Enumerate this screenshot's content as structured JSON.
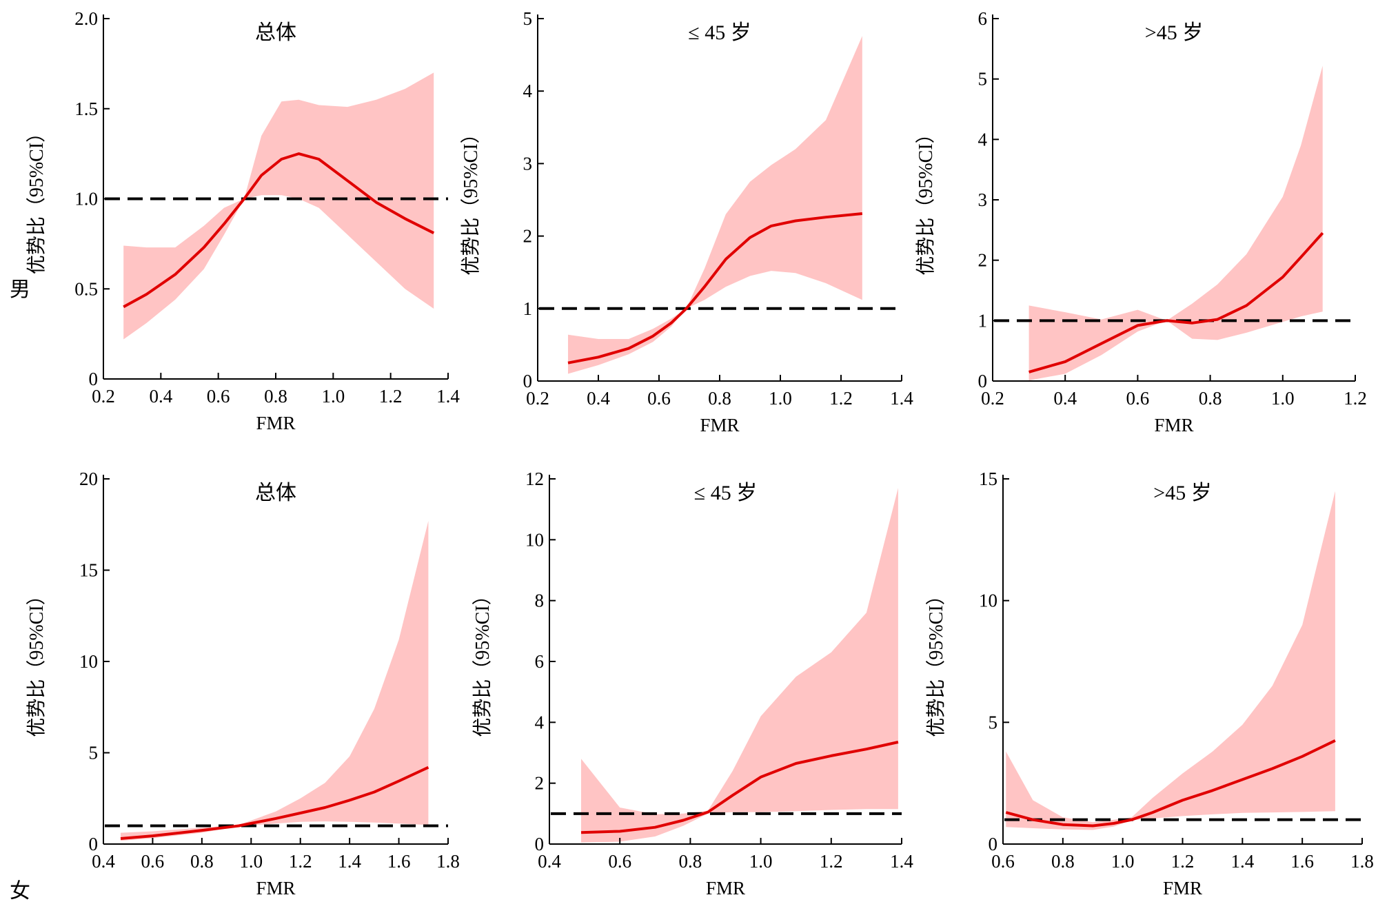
{
  "row_labels": {
    "male": "男",
    "female": "女"
  },
  "colors": {
    "curve": "#e00000",
    "band": "#ffc4c4",
    "reference": "#000000",
    "axis": "#000000"
  },
  "chart_data": [
    {
      "type": "line",
      "title": "总体",
      "xlabel": "FMR",
      "ylabel": "优势比（95%CI）",
      "xlim": [
        0.2,
        1.4
      ],
      "ylim": [
        0,
        2.0
      ],
      "xticks": [
        0.2,
        0.4,
        0.6,
        0.8,
        1.0,
        1.2,
        1.4
      ],
      "xtick_labels": [
        "0.2",
        "0.4",
        "0.6",
        "0.8",
        "1.0",
        "1.2",
        "1.4"
      ],
      "yticks": [
        0,
        0.5,
        1.0,
        1.5,
        2.0
      ],
      "ytick_labels": [
        "0",
        "0.5",
        "1.0",
        "1.5",
        "2.0"
      ],
      "reference_line": 1,
      "x": [
        0.27,
        0.35,
        0.45,
        0.55,
        0.62,
        0.69,
        0.75,
        0.82,
        0.88,
        0.95,
        1.05,
        1.15,
        1.25,
        1.35
      ],
      "y": [
        0.4,
        0.47,
        0.58,
        0.73,
        0.86,
        1.0,
        1.13,
        1.22,
        1.25,
        1.22,
        1.1,
        0.98,
        0.89,
        0.81
      ],
      "ci_lower": [
        0.22,
        0.31,
        0.44,
        0.61,
        0.8,
        1.0,
        1.02,
        1.02,
        1.0,
        0.95,
        0.8,
        0.65,
        0.5,
        0.39
      ],
      "ci_upper": [
        0.74,
        0.73,
        0.73,
        0.85,
        0.95,
        1.0,
        1.35,
        1.54,
        1.55,
        1.52,
        1.51,
        1.55,
        1.61,
        1.7
      ]
    },
    {
      "type": "line",
      "title": "≤ 45 岁",
      "xlabel": "FMR",
      "ylabel": "优势比（95%CI）",
      "xlim": [
        0.2,
        1.4
      ],
      "ylim": [
        0,
        5
      ],
      "xticks": [
        0.2,
        0.4,
        0.6,
        0.8,
        1.0,
        1.2,
        1.4
      ],
      "xtick_labels": [
        "0.2",
        "0.4",
        "0.6",
        "0.8",
        "1.0",
        "1.2",
        "1.4"
      ],
      "yticks": [
        0,
        1,
        2,
        3,
        4,
        5
      ],
      "ytick_labels": [
        "0",
        "1",
        "2",
        "3",
        "4",
        "5"
      ],
      "reference_line": 1,
      "x": [
        0.3,
        0.4,
        0.5,
        0.58,
        0.64,
        0.69,
        0.75,
        0.82,
        0.9,
        0.97,
        1.05,
        1.15,
        1.27
      ],
      "y": [
        0.25,
        0.33,
        0.45,
        0.62,
        0.8,
        1.0,
        1.3,
        1.68,
        1.98,
        2.14,
        2.21,
        2.26,
        2.31
      ],
      "ci_lower": [
        0.1,
        0.22,
        0.37,
        0.54,
        0.75,
        1.0,
        1.12,
        1.3,
        1.45,
        1.52,
        1.49,
        1.35,
        1.12
      ],
      "ci_upper": [
        0.64,
        0.58,
        0.58,
        0.72,
        0.86,
        1.0,
        1.55,
        2.3,
        2.75,
        2.98,
        3.2,
        3.6,
        4.76
      ]
    },
    {
      "type": "line",
      "title": ">45 岁",
      "xlabel": "FMR",
      "ylabel": "优势比（95%CI）",
      "xlim": [
        0.2,
        1.2
      ],
      "ylim": [
        0,
        6
      ],
      "xticks": [
        0.2,
        0.4,
        0.6,
        0.8,
        1.0,
        1.2
      ],
      "xtick_labels": [
        "0.2",
        "0.4",
        "0.6",
        "0.8",
        "1.0",
        "1.2"
      ],
      "yticks": [
        0,
        1,
        2,
        3,
        4,
        5,
        6
      ],
      "ytick_labels": [
        "0",
        "1",
        "2",
        "3",
        "4",
        "5",
        "6"
      ],
      "reference_line": 1,
      "x": [
        0.3,
        0.4,
        0.5,
        0.6,
        0.68,
        0.75,
        0.82,
        0.9,
        1.0,
        1.05,
        1.11
      ],
      "y": [
        0.15,
        0.32,
        0.62,
        0.92,
        1.0,
        0.96,
        1.02,
        1.25,
        1.72,
        2.05,
        2.45
      ],
      "ci_lower": [
        0.01,
        0.12,
        0.43,
        0.82,
        1.0,
        0.7,
        0.68,
        0.8,
        0.98,
        1.07,
        1.15
      ],
      "ci_upper": [
        1.25,
        1.14,
        1.02,
        1.18,
        1.0,
        1.28,
        1.6,
        2.1,
        3.05,
        3.9,
        5.22
      ]
    },
    {
      "type": "line",
      "title": "总体",
      "xlabel": "FMR",
      "ylabel": "优势比（95%CI）",
      "xlim": [
        0.4,
        1.8
      ],
      "ylim": [
        0,
        20
      ],
      "xticks": [
        0.4,
        0.6,
        0.8,
        1.0,
        1.2,
        1.4,
        1.6,
        1.8
      ],
      "xtick_labels": [
        "0.4",
        "0.6",
        "0.8",
        "1.0",
        "1.2",
        "1.4",
        "1.6",
        "1.8"
      ],
      "yticks": [
        0,
        5,
        10,
        15,
        20
      ],
      "ytick_labels": [
        "0",
        "5",
        "10",
        "15",
        "20"
      ],
      "reference_line": 1,
      "x": [
        0.47,
        0.6,
        0.8,
        0.95,
        1.1,
        1.2,
        1.3,
        1.4,
        1.5,
        1.6,
        1.72
      ],
      "y": [
        0.3,
        0.45,
        0.75,
        1.0,
        1.4,
        1.7,
        2.0,
        2.4,
        2.85,
        3.45,
        4.2
      ],
      "ci_lower": [
        0.18,
        0.32,
        0.62,
        0.98,
        1.12,
        1.22,
        1.24,
        1.22,
        1.18,
        1.12,
        1.05
      ],
      "ci_upper": [
        0.62,
        0.7,
        0.9,
        1.05,
        1.78,
        2.5,
        3.35,
        4.8,
        7.4,
        11.2,
        17.7
      ]
    },
    {
      "type": "line",
      "title": "≤ 45 岁",
      "xlabel": "FMR",
      "ylabel": "优势比（95%CI）",
      "xlim": [
        0.4,
        1.4
      ],
      "ylim": [
        0,
        12
      ],
      "xticks": [
        0.4,
        0.6,
        0.8,
        1.0,
        1.2,
        1.4
      ],
      "xtick_labels": [
        "0.4",
        "0.6",
        "0.8",
        "1.0",
        "1.2",
        "1.4"
      ],
      "yticks": [
        0,
        2,
        4,
        6,
        8,
        10,
        12
      ],
      "ytick_labels": [
        "0",
        "2",
        "4",
        "6",
        "8",
        "10",
        "12"
      ],
      "reference_line": 1,
      "x": [
        0.49,
        0.6,
        0.7,
        0.78,
        0.85,
        0.92,
        1.0,
        1.1,
        1.2,
        1.3,
        1.39
      ],
      "y": [
        0.38,
        0.42,
        0.55,
        0.78,
        1.05,
        1.6,
        2.2,
        2.65,
        2.9,
        3.12,
        3.35
      ],
      "ci_lower": [
        0.05,
        0.08,
        0.25,
        0.6,
        1.0,
        1.05,
        1.05,
        1.08,
        1.12,
        1.15,
        1.15
      ],
      "ci_upper": [
        2.8,
        1.2,
        0.98,
        1.0,
        1.1,
        2.4,
        4.2,
        5.5,
        6.3,
        7.6,
        11.7
      ]
    },
    {
      "type": "line",
      "title": ">45 岁",
      "xlabel": "FMR",
      "ylabel": "优势比（95%CI）",
      "xlim": [
        0.6,
        1.8
      ],
      "ylim": [
        0,
        15
      ],
      "xticks": [
        0.6,
        0.8,
        1.0,
        1.2,
        1.4,
        1.6,
        1.8
      ],
      "xtick_labels": [
        "0.6",
        "0.8",
        "1.0",
        "1.2",
        "1.4",
        "1.6",
        "1.8"
      ],
      "yticks": [
        0,
        5,
        10,
        15
      ],
      "ytick_labels": [
        "0",
        "5",
        "10",
        "15"
      ],
      "reference_line": 1,
      "x": [
        0.61,
        0.7,
        0.8,
        0.9,
        0.97,
        1.03,
        1.1,
        1.2,
        1.3,
        1.4,
        1.5,
        1.6,
        1.71
      ],
      "y": [
        1.3,
        1.0,
        0.8,
        0.75,
        0.85,
        1.0,
        1.3,
        1.8,
        2.2,
        2.65,
        3.1,
        3.6,
        4.25
      ],
      "ci_lower": [
        0.7,
        0.65,
        0.6,
        0.58,
        0.72,
        0.98,
        1.05,
        1.15,
        1.22,
        1.28,
        1.3,
        1.32,
        1.35
      ],
      "ci_upper": [
        3.8,
        1.8,
        1.1,
        0.9,
        1.0,
        1.1,
        1.9,
        2.9,
        3.8,
        4.9,
        6.5,
        9.0,
        14.5
      ]
    }
  ]
}
